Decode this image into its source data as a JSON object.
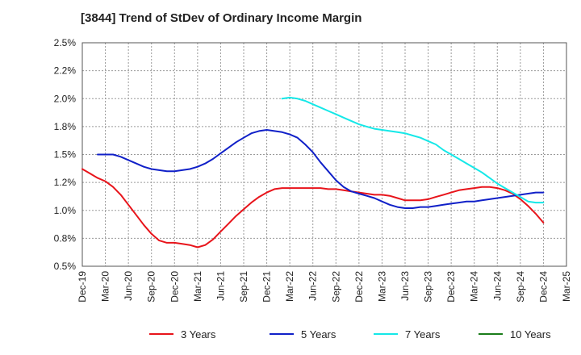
{
  "title": "[3844]  Trend of StDev of Ordinary Income Margin",
  "chart_data": {
    "type": "line",
    "title": "[3844]  Trend of StDev of Ordinary Income Margin",
    "xlabel": "",
    "ylabel": "",
    "x_ticks": [
      "Dec-19",
      "Mar-20",
      "Jun-20",
      "Sep-20",
      "Dec-20",
      "Mar-21",
      "Jun-21",
      "Sep-21",
      "Dec-21",
      "Mar-22",
      "Jun-22",
      "Sep-22",
      "Dec-22",
      "Mar-23",
      "Jun-23",
      "Sep-23",
      "Dec-23",
      "Mar-24",
      "Jun-24",
      "Sep-24",
      "Dec-24",
      "Mar-25"
    ],
    "y_ticks": [
      "0.5%",
      "0.8%",
      "1.0%",
      "1.2%",
      "1.5%",
      "1.8%",
      "2.0%",
      "2.2%",
      "2.5%"
    ],
    "ylim": [
      0.5,
      2.5
    ],
    "grid": true,
    "legend_position": "bottom",
    "series": [
      {
        "name": "3 Years",
        "color": "#e8141b",
        "x": [
          "Dec-19",
          "Jan-20",
          "Feb-20",
          "Mar-20",
          "Apr-20",
          "May-20",
          "Jun-20",
          "Jul-20",
          "Aug-20",
          "Sep-20",
          "Oct-20",
          "Nov-20",
          "Dec-20",
          "Jan-21",
          "Feb-21",
          "Mar-21",
          "Apr-21",
          "May-21",
          "Jun-21",
          "Jul-21",
          "Aug-21",
          "Sep-21",
          "Oct-21",
          "Nov-21",
          "Dec-21",
          "Jan-22",
          "Feb-22",
          "Mar-22",
          "Apr-22",
          "May-22",
          "Jun-22",
          "Jul-22",
          "Aug-22",
          "Sep-22",
          "Oct-22",
          "Nov-22",
          "Dec-22",
          "Jan-23",
          "Feb-23",
          "Mar-23",
          "Apr-23",
          "May-23",
          "Jun-23",
          "Jul-23",
          "Aug-23",
          "Sep-23",
          "Oct-23",
          "Nov-23",
          "Dec-23",
          "Jan-24",
          "Feb-24",
          "Mar-24",
          "Apr-24",
          "May-24",
          "Jun-24",
          "Jul-24",
          "Aug-24",
          "Sep-24",
          "Oct-24",
          "Nov-24",
          "Dec-24"
        ],
        "values": [
          1.37,
          1.33,
          1.29,
          1.26,
          1.21,
          1.14,
          1.05,
          0.96,
          0.87,
          0.79,
          0.73,
          0.71,
          0.71,
          0.7,
          0.69,
          0.67,
          0.69,
          0.74,
          0.81,
          0.88,
          0.95,
          1.01,
          1.07,
          1.12,
          1.16,
          1.19,
          1.2,
          1.2,
          1.2,
          1.2,
          1.2,
          1.2,
          1.19,
          1.19,
          1.18,
          1.17,
          1.16,
          1.15,
          1.14,
          1.14,
          1.13,
          1.11,
          1.09,
          1.09,
          1.09,
          1.1,
          1.12,
          1.14,
          1.16,
          1.18,
          1.19,
          1.2,
          1.21,
          1.21,
          1.2,
          1.18,
          1.15,
          1.1,
          1.04,
          0.97,
          0.89
        ]
      },
      {
        "name": "5 Years",
        "color": "#1020c8",
        "x": [
          "Feb-20",
          "Mar-20",
          "Apr-20",
          "May-20",
          "Jun-20",
          "Jul-20",
          "Aug-20",
          "Sep-20",
          "Oct-20",
          "Nov-20",
          "Dec-20",
          "Jan-21",
          "Feb-21",
          "Mar-21",
          "Apr-21",
          "May-21",
          "Jun-21",
          "Jul-21",
          "Aug-21",
          "Sep-21",
          "Oct-21",
          "Nov-21",
          "Dec-21",
          "Jan-22",
          "Feb-22",
          "Mar-22",
          "Apr-22",
          "May-22",
          "Jun-22",
          "Jul-22",
          "Aug-22",
          "Sep-22",
          "Oct-22",
          "Nov-22",
          "Dec-22",
          "Jan-23",
          "Feb-23",
          "Mar-23",
          "Apr-23",
          "May-23",
          "Jun-23",
          "Jul-23",
          "Aug-23",
          "Sep-23",
          "Oct-23",
          "Nov-23",
          "Dec-23",
          "Jan-24",
          "Feb-24",
          "Mar-24",
          "Apr-24",
          "May-24",
          "Jun-24",
          "Jul-24",
          "Aug-24",
          "Sep-24",
          "Oct-24",
          "Nov-24",
          "Dec-24"
        ],
        "values": [
          1.5,
          1.5,
          1.5,
          1.48,
          1.45,
          1.42,
          1.39,
          1.37,
          1.36,
          1.35,
          1.35,
          1.36,
          1.37,
          1.39,
          1.42,
          1.46,
          1.51,
          1.56,
          1.61,
          1.65,
          1.69,
          1.71,
          1.72,
          1.71,
          1.7,
          1.68,
          1.65,
          1.59,
          1.52,
          1.43,
          1.35,
          1.27,
          1.21,
          1.17,
          1.15,
          1.13,
          1.11,
          1.08,
          1.05,
          1.03,
          1.02,
          1.02,
          1.03,
          1.03,
          1.04,
          1.05,
          1.06,
          1.07,
          1.08,
          1.08,
          1.09,
          1.1,
          1.11,
          1.12,
          1.13,
          1.14,
          1.15,
          1.16,
          1.16
        ]
      },
      {
        "name": "7 Years",
        "color": "#15e8e8",
        "x": [
          "Feb-22",
          "Mar-22",
          "Apr-22",
          "May-22",
          "Jun-22",
          "Jul-22",
          "Aug-22",
          "Sep-22",
          "Oct-22",
          "Nov-22",
          "Dec-22",
          "Jan-23",
          "Feb-23",
          "Mar-23",
          "Apr-23",
          "May-23",
          "Jun-23",
          "Jul-23",
          "Aug-23",
          "Sep-23",
          "Oct-23",
          "Nov-23",
          "Dec-23",
          "Jan-24",
          "Feb-24",
          "Mar-24",
          "Apr-24",
          "May-24",
          "Jun-24",
          "Jul-24",
          "Aug-24",
          "Sep-24",
          "Oct-24",
          "Nov-24",
          "Dec-24"
        ],
        "values": [
          2.0,
          2.01,
          2.0,
          1.98,
          1.95,
          1.92,
          1.89,
          1.86,
          1.83,
          1.8,
          1.77,
          1.75,
          1.73,
          1.72,
          1.71,
          1.7,
          1.69,
          1.67,
          1.65,
          1.62,
          1.59,
          1.54,
          1.5,
          1.46,
          1.42,
          1.38,
          1.34,
          1.29,
          1.24,
          1.2,
          1.16,
          1.12,
          1.08,
          1.07,
          1.07
        ]
      },
      {
        "name": "10 Years",
        "color": "#1a7d1a",
        "x": [],
        "values": []
      }
    ]
  }
}
